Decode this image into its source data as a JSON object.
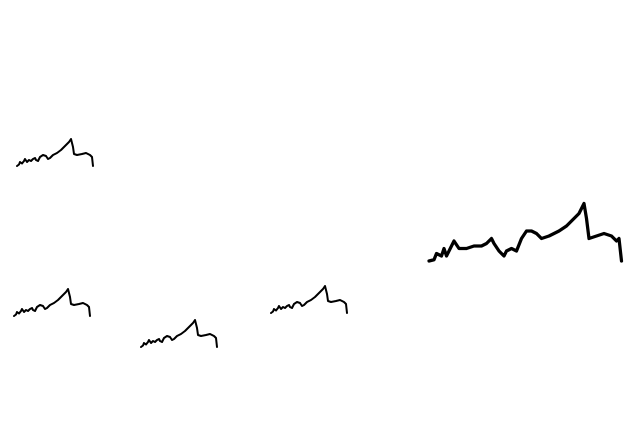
{
  "scene": {
    "background": "#ffffff",
    "stroke_color": "#000000",
    "doodles": [
      {
        "name": "squiggle-top-left"
      },
      {
        "name": "squiggle-left"
      },
      {
        "name": "squiggle-bottom-middle"
      },
      {
        "name": "squiggle-center"
      },
      {
        "name": "squiggle-large-right"
      }
    ]
  }
}
